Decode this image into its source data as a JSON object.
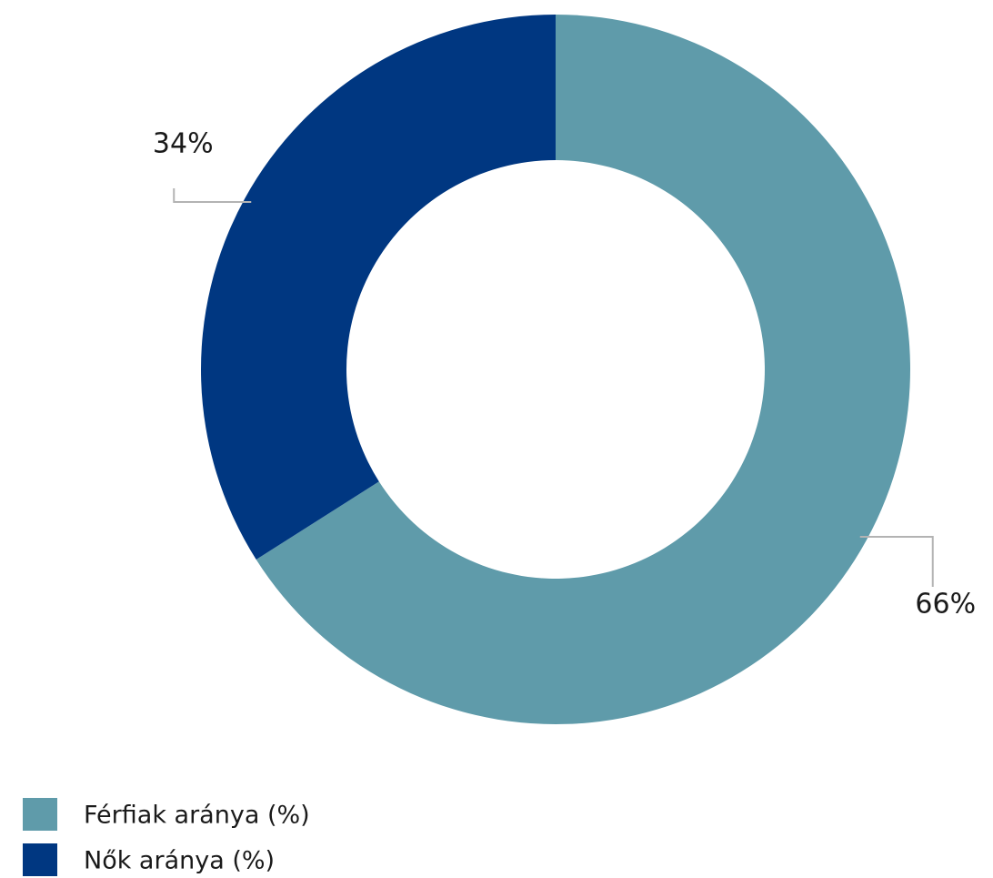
{
  "chart_data": {
    "type": "pie",
    "categories": [
      "Férfiak aránya (%)",
      "Nők aránya (%)"
    ],
    "values": [
      66,
      34
    ],
    "value_labels": [
      "66%",
      "34%"
    ],
    "colors": [
      "#5f9baa",
      "#003781"
    ]
  }
}
